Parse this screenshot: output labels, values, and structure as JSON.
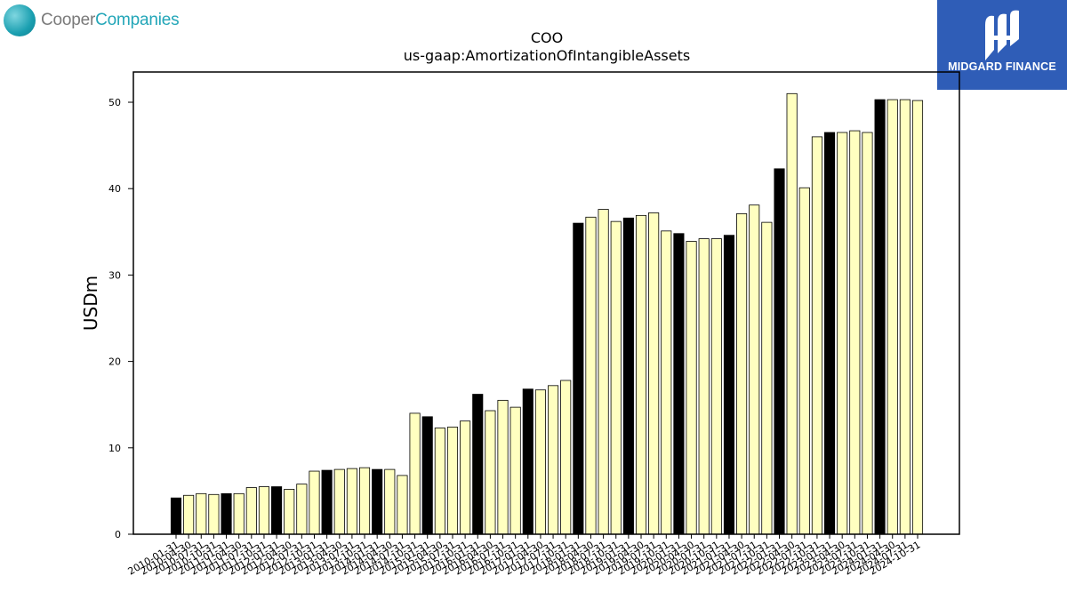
{
  "logos": {
    "left": {
      "part1": "Cooper",
      "part2": "Companies",
      "icon": "globe-icon"
    },
    "right": {
      "name": "MIDGARD FINANCE",
      "icon": "midgard-mark-icon"
    }
  },
  "colors": {
    "highlight": "#000000",
    "normal": "#ffffc0",
    "edge": "#000000",
    "logo_bg": "#2f5db7"
  },
  "chart_data": {
    "type": "bar",
    "title": "COO",
    "subtitle": "us-gaap:AmortizationOfIntangibleAssets",
    "xlabel": "",
    "ylabel": "USDm",
    "ylim": [
      0,
      53.5
    ],
    "yticks": [
      0,
      10,
      20,
      30,
      40,
      50
    ],
    "grid": false,
    "categories": [
      "2010-01-31",
      "2010-04-30",
      "2010-07-31",
      "2010-10-31",
      "2011-01-31",
      "2011-04-30",
      "2011-07-31",
      "2011-10-31",
      "2012-01-31",
      "2012-04-30",
      "2012-07-31",
      "2012-10-31",
      "2013-01-31",
      "2013-04-30",
      "2013-07-31",
      "2013-10-31",
      "2014-01-31",
      "2014-04-30",
      "2014-07-31",
      "2014-10-31",
      "2015-01-31",
      "2015-04-30",
      "2015-07-31",
      "2015-10-31",
      "2016-01-31",
      "2016-04-30",
      "2016-07-31",
      "2016-10-31",
      "2017-01-31",
      "2017-04-30",
      "2017-07-31",
      "2017-10-31",
      "2018-01-31",
      "2018-04-30",
      "2018-07-31",
      "2018-10-31",
      "2019-01-31",
      "2019-04-30",
      "2019-07-31",
      "2019-10-31",
      "2020-01-31",
      "2020-04-30",
      "2020-07-31",
      "2020-10-31",
      "2021-01-31",
      "2021-04-30",
      "2021-07-31",
      "2021-10-31",
      "2022-01-31",
      "2022-04-30",
      "2022-07-31",
      "2022-10-31",
      "2023-01-31",
      "2023-04-30",
      "2023-07-31",
      "2023-10-31",
      "2024-01-31",
      "2024-04-30",
      "2024-07-31",
      "2024-10-31"
    ],
    "values": [
      4.2,
      4.5,
      4.7,
      4.6,
      4.7,
      4.7,
      5.4,
      5.5,
      5.5,
      5.2,
      5.8,
      7.3,
      7.4,
      7.5,
      7.6,
      7.7,
      7.5,
      7.5,
      6.8,
      14.0,
      13.6,
      12.3,
      12.4,
      13.1,
      16.2,
      14.3,
      15.5,
      14.7,
      16.8,
      16.7,
      17.2,
      17.8,
      36.0,
      36.7,
      37.6,
      36.2,
      36.6,
      36.9,
      37.2,
      35.1,
      34.8,
      33.9,
      34.2,
      34.2,
      34.6,
      37.1,
      38.1,
      36.1,
      42.3,
      51.0,
      40.1,
      46.0,
      46.5,
      46.5,
      46.7,
      46.5,
      50.3,
      50.3,
      50.3,
      50.2
    ],
    "highlighted_every": 4,
    "bar_colors_note": "year-start (-01-31) bars are black, others light yellow"
  }
}
